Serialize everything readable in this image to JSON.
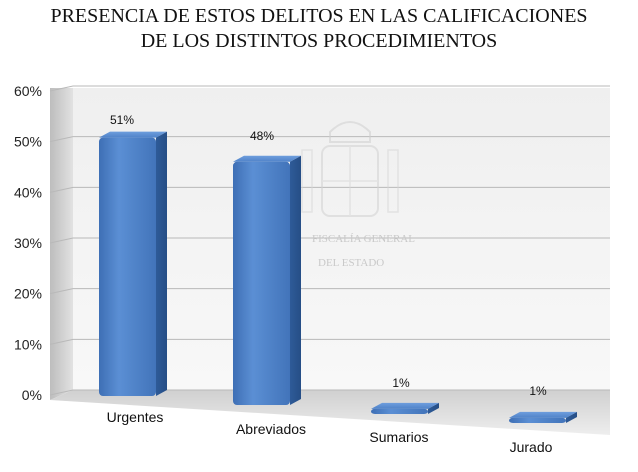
{
  "chart_data": {
    "type": "bar",
    "title_lines": [
      "PRESENCIA DE ESTOS DELITOS EN LAS CALIFICACIONES",
      "DE LOS DISTINTOS PROCEDIMIENTOS"
    ],
    "categories": [
      "Urgentes",
      "Abreviados",
      "Sumarios",
      "Jurado"
    ],
    "values": [
      51,
      48,
      1,
      1
    ],
    "data_labels": [
      "51%",
      "48%",
      "1%",
      "1%"
    ],
    "y_ticks": [
      "0%",
      "10%",
      "20%",
      "30%",
      "40%",
      "50%",
      "60%"
    ],
    "ylim": [
      0,
      60
    ],
    "grid": true,
    "legend": "none",
    "bar_color": "#4A7EC3",
    "watermark_lines": [
      "FISCALÍA GENERAL",
      "DEL ESTADO"
    ]
  }
}
